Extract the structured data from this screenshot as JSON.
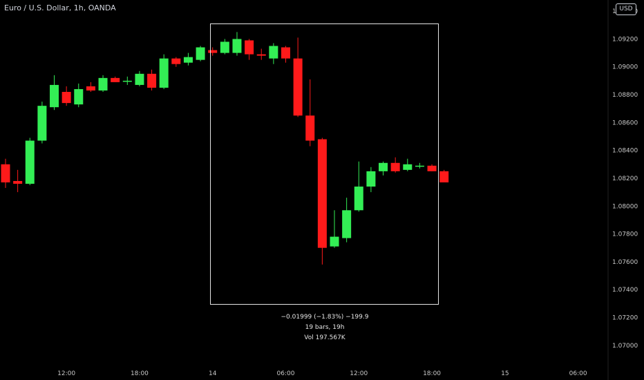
{
  "header": {
    "title": "Euro / U.S. Dollar, 1h, OANDA",
    "currency": "USD"
  },
  "colors": {
    "up": "#33ee55",
    "down": "#ff1a1a",
    "background": "#000000",
    "selection": "#e6e6e6"
  },
  "measure": {
    "change": "−0.01999 (−1.83%) −199.9",
    "bars": "19 bars, 19h",
    "volume": "Vol 197.567K"
  },
  "chart_data": {
    "type": "candlestick",
    "title": "Euro / U.S. Dollar, 1h, OANDA",
    "ylim": [
      1.0685,
      1.0948
    ],
    "y_ticks": [
      "1.07000",
      "1.07200",
      "1.07400",
      "1.07600",
      "1.07800",
      "1.08000",
      "1.08200",
      "1.08400",
      "1.08600",
      "1.08800",
      "1.09000",
      "1.09200",
      "1.09400"
    ],
    "x_ticks": [
      {
        "label": "12:00",
        "bar": 5
      },
      {
        "label": "18:00",
        "bar": 11
      },
      {
        "label": "14",
        "bar": 17
      },
      {
        "label": "06:00",
        "bar": 23
      },
      {
        "label": "12:00",
        "bar": 29
      },
      {
        "label": "18:00",
        "bar": 35
      },
      {
        "label": "15",
        "bar": 41
      },
      {
        "label": "06:00",
        "bar": 47
      }
    ],
    "candles": [
      {
        "o": 1.083,
        "h": 1.0834,
        "l": 1.0813,
        "c": 1.0817
      },
      {
        "o": 1.0818,
        "h": 1.0826,
        "l": 1.081,
        "c": 1.0816
      },
      {
        "o": 1.0816,
        "h": 1.0849,
        "l": 1.0815,
        "c": 1.0847
      },
      {
        "o": 1.0847,
        "h": 1.0875,
        "l": 1.0845,
        "c": 1.0872
      },
      {
        "o": 1.0871,
        "h": 1.0894,
        "l": 1.0869,
        "c": 1.0887
      },
      {
        "o": 1.0882,
        "h": 1.0886,
        "l": 1.0872,
        "c": 1.0874
      },
      {
        "o": 1.0873,
        "h": 1.0888,
        "l": 1.0871,
        "c": 1.0884
      },
      {
        "o": 1.0886,
        "h": 1.0889,
        "l": 1.0882,
        "c": 1.0883
      },
      {
        "o": 1.0883,
        "h": 1.0894,
        "l": 1.0882,
        "c": 1.0892
      },
      {
        "o": 1.0892,
        "h": 1.0893,
        "l": 1.0889,
        "c": 1.0889
      },
      {
        "o": 1.089,
        "h": 1.0893,
        "l": 1.0887,
        "c": 1.089
      },
      {
        "o": 1.0887,
        "h": 1.0897,
        "l": 1.0886,
        "c": 1.0895
      },
      {
        "o": 1.0895,
        "h": 1.0898,
        "l": 1.0883,
        "c": 1.0885
      },
      {
        "o": 1.0885,
        "h": 1.0909,
        "l": 1.0884,
        "c": 1.0906
      },
      {
        "o": 1.0906,
        "h": 1.0907,
        "l": 1.09,
        "c": 1.0902
      },
      {
        "o": 1.0903,
        "h": 1.091,
        "l": 1.0901,
        "c": 1.0907
      },
      {
        "o": 1.0905,
        "h": 1.0915,
        "l": 1.0904,
        "c": 1.0914
      },
      {
        "o": 1.0912,
        "h": 1.0914,
        "l": 1.0908,
        "c": 1.091
      },
      {
        "o": 1.091,
        "h": 1.092,
        "l": 1.0909,
        "c": 1.0918
      },
      {
        "o": 1.091,
        "h": 1.0925,
        "l": 1.0908,
        "c": 1.092
      },
      {
        "o": 1.0919,
        "h": 1.092,
        "l": 1.0905,
        "c": 1.0909
      },
      {
        "o": 1.0909,
        "h": 1.0913,
        "l": 1.0905,
        "c": 1.0908
      },
      {
        "o": 1.0906,
        "h": 1.0917,
        "l": 1.0902,
        "c": 1.0915
      },
      {
        "o": 1.0914,
        "h": 1.0915,
        "l": 1.0903,
        "c": 1.0906
      },
      {
        "o": 1.0906,
        "h": 1.0921,
        "l": 1.0864,
        "c": 1.0865
      },
      {
        "o": 1.0865,
        "h": 1.0891,
        "l": 1.0843,
        "c": 1.0847
      },
      {
        "o": 1.0848,
        "h": 1.0849,
        "l": 1.0758,
        "c": 1.077
      },
      {
        "o": 1.0771,
        "h": 1.0797,
        "l": 1.077,
        "c": 1.0778
      },
      {
        "o": 1.0777,
        "h": 1.0806,
        "l": 1.0774,
        "c": 1.0797
      },
      {
        "o": 1.0797,
        "h": 1.0832,
        "l": 1.0796,
        "c": 1.0814
      },
      {
        "o": 1.0814,
        "h": 1.0828,
        "l": 1.081,
        "c": 1.0825
      },
      {
        "o": 1.0825,
        "h": 1.0832,
        "l": 1.0822,
        "c": 1.0831
      },
      {
        "o": 1.0831,
        "h": 1.0835,
        "l": 1.0824,
        "c": 1.0825
      },
      {
        "o": 1.0826,
        "h": 1.0834,
        "l": 1.0825,
        "c": 1.083
      },
      {
        "o": 1.0829,
        "h": 1.0831,
        "l": 1.0827,
        "c": 1.0829
      },
      {
        "o": 1.0829,
        "h": 1.083,
        "l": 1.0825,
        "c": 1.0825
      },
      {
        "o": 1.0825,
        "h": 1.0826,
        "l": 1.0817,
        "c": 1.0817
      }
    ]
  }
}
